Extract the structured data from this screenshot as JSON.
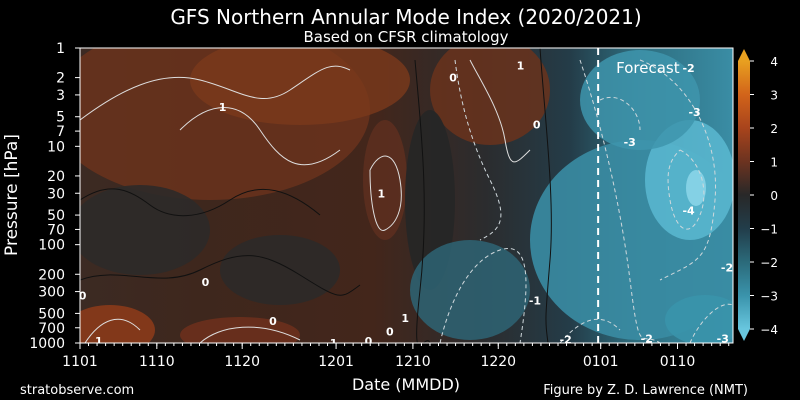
{
  "chart_data": {
    "type": "heatmap",
    "title": "GFS Northern Annular Mode Index (2020/2021)",
    "subtitle": "Based on CFSR climatology",
    "xlabel": "Date (MMDD)",
    "ylabel": "Pressure [hPa]",
    "x_ticks": [
      "1101",
      "1110",
      "1120",
      "1201",
      "1210",
      "1220",
      "0101",
      "0110"
    ],
    "x_tick_day_index": [
      0,
      9,
      19,
      30,
      39,
      49,
      61,
      70
    ],
    "x_range_days": [
      0,
      76.5
    ],
    "y_ticks": [
      1,
      2,
      3,
      5,
      7,
      10,
      20,
      30,
      50,
      70,
      100,
      200,
      300,
      500,
      700,
      1000
    ],
    "y_scale": "log",
    "y_range": [
      1,
      1000
    ],
    "y_inverted": true,
    "forecast_label": "Forecast",
    "forecast_start_day_index": 60.7,
    "colorbar": {
      "ticks": [
        4,
        3,
        2,
        1,
        0,
        -1,
        -2,
        -3,
        -4
      ],
      "range": [
        -4,
        4
      ],
      "colors": {
        "-4": "#5bbdd6",
        "-3": "#3a93ab",
        "-2": "#2c6f7e",
        "-1": "#234350",
        "0": "#262626",
        "1": "#4e2e22",
        "2": "#8a3f1f",
        "3": "#c84a14",
        "4": "#e8a020"
      },
      "extend": "both"
    },
    "contour_labels": [
      {
        "text": "1",
        "day": 16.7,
        "hpa": 4
      },
      {
        "text": "0",
        "day": 14.7,
        "hpa": 240
      },
      {
        "text": "0",
        "day": 0.3,
        "hpa": 330
      },
      {
        "text": "1",
        "day": 2.2,
        "hpa": 950
      },
      {
        "text": "0",
        "day": 22.6,
        "hpa": 600
      },
      {
        "text": "1",
        "day": 29.7,
        "hpa": 1000
      },
      {
        "text": "0",
        "day": 33.8,
        "hpa": 950
      },
      {
        "text": "0",
        "day": 36.3,
        "hpa": 760
      },
      {
        "text": "1",
        "day": 35.3,
        "hpa": 30
      },
      {
        "text": "1",
        "day": 38.1,
        "hpa": 560
      },
      {
        "text": "0",
        "day": 43.7,
        "hpa": 2
      },
      {
        "text": "1",
        "day": 51.6,
        "hpa": 1.5
      },
      {
        "text": "0",
        "day": 53.5,
        "hpa": 6
      },
      {
        "text": "-1",
        "day": 53.3,
        "hpa": 370
      },
      {
        "text": "-2",
        "day": 56.9,
        "hpa": 920
      },
      {
        "text": "-2",
        "day": 71.3,
        "hpa": 1.6
      },
      {
        "text": "-3",
        "day": 72.0,
        "hpa": 4.5
      },
      {
        "text": "-3",
        "day": 64.4,
        "hpa": 9
      },
      {
        "text": "-4",
        "day": 71.3,
        "hpa": 45
      },
      {
        "text": "-2",
        "day": 66.4,
        "hpa": 900
      },
      {
        "text": "-3",
        "day": 75.3,
        "hpa": 900
      },
      {
        "text": "-2",
        "day": 75.8,
        "hpa": 170
      }
    ]
  },
  "credits": {
    "left": "stratobserve.com",
    "right": "Figure by Z. D. Lawrence (NMT)"
  }
}
